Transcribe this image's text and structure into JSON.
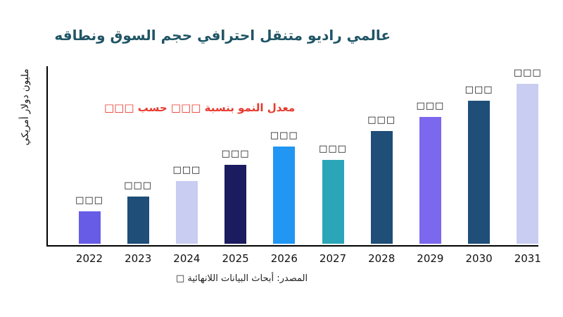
{
  "chart_data": {
    "type": "bar",
    "title": "عالمي راديو متنقل احترافي حجم السوق ونطاقه",
    "annotation": "معدل النمو بنسبة □□□ حسب □□□",
    "ylabel": "مليون دولار أمريكي",
    "xlabel": "",
    "source": "المصدر: أبحاث البيانات اللانهائية □",
    "categories": [
      "2022",
      "2023",
      "2024",
      "2025",
      "2026",
      "2027",
      "2028",
      "2029",
      "2030",
      "2031"
    ],
    "values": [
      46,
      67,
      89,
      112,
      138,
      119,
      160,
      180,
      203,
      227
    ],
    "bar_labels": [
      "□□□",
      "□□□",
      "□□□",
      "□□□",
      "□□□",
      "□□□",
      "□□□",
      "□□□",
      "□□□",
      "□□□"
    ],
    "bar_colors": [
      "#675ce6",
      "#1f4e79",
      "#c9cdf2",
      "#1b1b60",
      "#2196f3",
      "#2ba6b8",
      "#1f4e79",
      "#7b68ee",
      "#1f4e79",
      "#c9cdf2"
    ],
    "ylim": [
      0,
      250
    ],
    "grid": false,
    "legend": "none",
    "colors": {
      "title_text": "#205566",
      "annotation_text": "#e8392e",
      "axis": "#000000",
      "tick_text": "#111111",
      "background": "#ffffff"
    }
  }
}
